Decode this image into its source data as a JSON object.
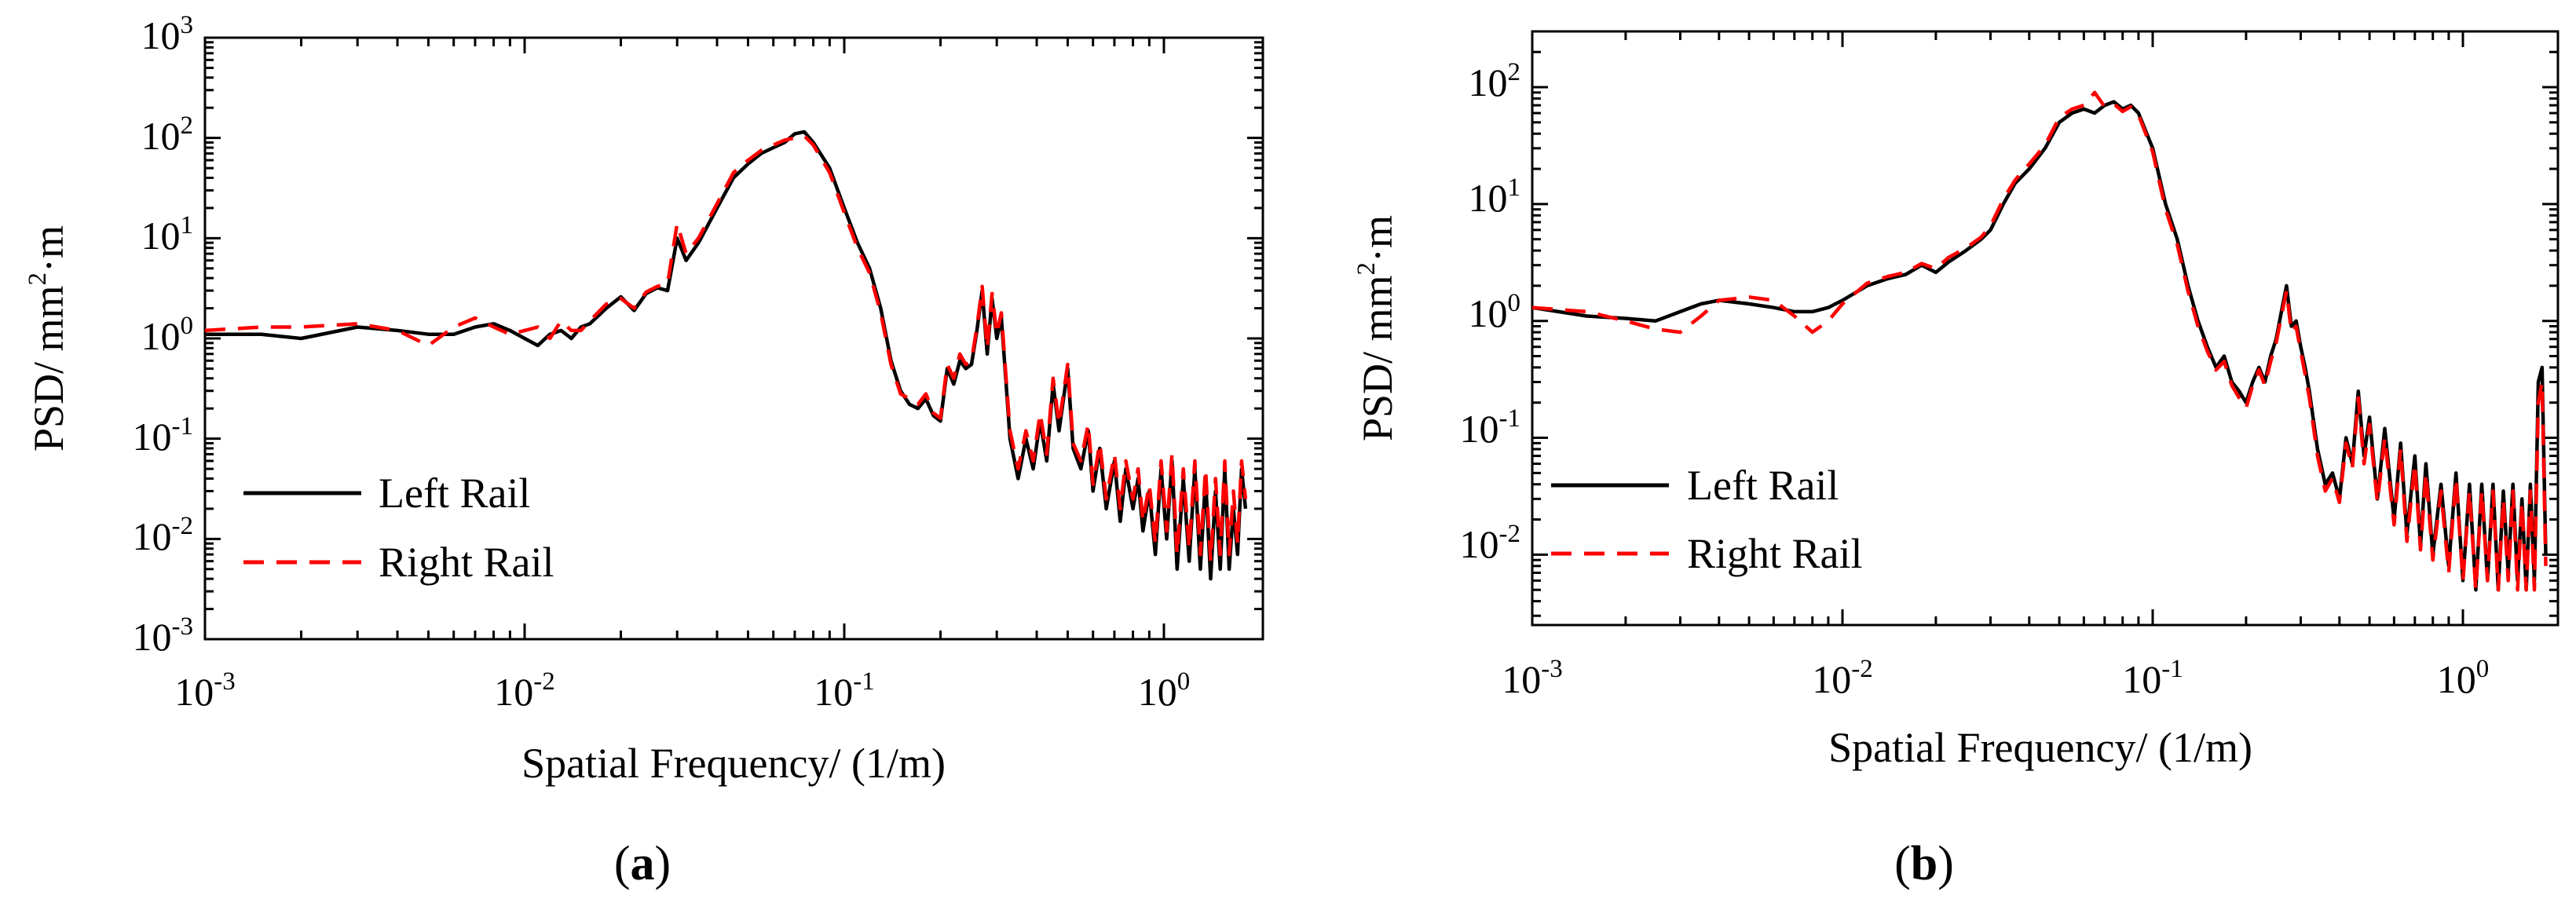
{
  "chart_data": [
    {
      "type": "line",
      "panel": "a",
      "panel_label": "a",
      "xlabel": "Spatial Frequency/ (1/m)",
      "ylabel": "PSD/ mm",
      "ylabel_sup": "2",
      "ylabel_tail": "·m",
      "x_scale": "log",
      "y_scale": "log",
      "xlim": [
        0.001,
        1.9
      ],
      "ylim": [
        0.001,
        1000
      ],
      "x_ticks": [
        {
          "base": "10",
          "exp": "-3"
        },
        {
          "base": "10",
          "exp": "-2"
        },
        {
          "base": "10",
          "exp": "-1"
        },
        {
          "base": "10",
          "exp": "0"
        }
      ],
      "y_ticks": [
        {
          "base": "10",
          "exp": "-3"
        },
        {
          "base": "10",
          "exp": "-2"
        },
        {
          "base": "10",
          "exp": "-1"
        },
        {
          "base": "10",
          "exp": "0"
        },
        {
          "base": "10",
          "exp": "1"
        },
        {
          "base": "10",
          "exp": "2"
        },
        {
          "base": "10",
          "exp": "3"
        }
      ],
      "legend_position": "bottom-left",
      "series": [
        {
          "name": "Left Rail",
          "color": "#000000",
          "dash": "solid",
          "x": [
            0.001,
            0.0015,
            0.002,
            0.003,
            0.004,
            0.005,
            0.006,
            0.007,
            0.008,
            0.009,
            0.01,
            0.011,
            0.012,
            0.013,
            0.014,
            0.015,
            0.016,
            0.018,
            0.02,
            0.022,
            0.024,
            0.026,
            0.028,
            0.03,
            0.032,
            0.035,
            0.04,
            0.045,
            0.05,
            0.055,
            0.06,
            0.065,
            0.07,
            0.075,
            0.08,
            0.09,
            0.1,
            0.11,
            0.12,
            0.13,
            0.14,
            0.15,
            0.16,
            0.17,
            0.18,
            0.19,
            0.2,
            0.21,
            0.22,
            0.23,
            0.24,
            0.25,
            0.26,
            0.27,
            0.28,
            0.29,
            0.3,
            0.31,
            0.32,
            0.33,
            0.35,
            0.37,
            0.39,
            0.41,
            0.43,
            0.45,
            0.47,
            0.5,
            0.52,
            0.55,
            0.58,
            0.6,
            0.63,
            0.66,
            0.7,
            0.73,
            0.76,
            0.8,
            0.83,
            0.86,
            0.9,
            0.94,
            0.98,
            1.02,
            1.06,
            1.1,
            1.15,
            1.2,
            1.25,
            1.3,
            1.35,
            1.4,
            1.45,
            1.5,
            1.55,
            1.6,
            1.65,
            1.7,
            1.75,
            1.8
          ],
          "y": [
            1.1,
            1.1,
            1.0,
            1.3,
            1.2,
            1.1,
            1.1,
            1.3,
            1.4,
            1.2,
            1.0,
            0.85,
            1.1,
            1.2,
            1.0,
            1.3,
            1.4,
            2.0,
            2.6,
            1.9,
            2.8,
            3.2,
            3.0,
            10,
            6,
            9,
            20,
            40,
            55,
            70,
            80,
            90,
            110,
            115,
            90,
            50,
            20,
            9,
            5,
            2,
            0.6,
            0.3,
            0.22,
            0.2,
            0.25,
            0.17,
            0.15,
            0.5,
            0.35,
            0.6,
            0.5,
            0.55,
            1.2,
            3.0,
            0.7,
            2.5,
            1.0,
            1.6,
            0.4,
            0.1,
            0.04,
            0.1,
            0.05,
            0.15,
            0.06,
            0.35,
            0.12,
            0.5,
            0.08,
            0.05,
            0.12,
            0.03,
            0.08,
            0.02,
            0.06,
            0.015,
            0.05,
            0.02,
            0.04,
            0.012,
            0.03,
            0.007,
            0.05,
            0.01,
            0.06,
            0.005,
            0.04,
            0.006,
            0.05,
            0.005,
            0.04,
            0.004,
            0.03,
            0.005,
            0.05,
            0.005,
            0.02,
            0.007,
            0.05,
            0.02
          ]
        },
        {
          "name": "Right Rail",
          "color": "#ff0000",
          "dash": "dashed",
          "x": [
            0.001,
            0.0015,
            0.002,
            0.003,
            0.004,
            0.005,
            0.006,
            0.007,
            0.008,
            0.009,
            0.01,
            0.011,
            0.012,
            0.013,
            0.014,
            0.015,
            0.016,
            0.018,
            0.02,
            0.022,
            0.024,
            0.026,
            0.028,
            0.03,
            0.032,
            0.035,
            0.04,
            0.045,
            0.05,
            0.055,
            0.06,
            0.065,
            0.07,
            0.075,
            0.08,
            0.09,
            0.1,
            0.11,
            0.12,
            0.13,
            0.14,
            0.15,
            0.16,
            0.17,
            0.18,
            0.19,
            0.2,
            0.21,
            0.22,
            0.23,
            0.24,
            0.25,
            0.26,
            0.27,
            0.28,
            0.29,
            0.3,
            0.31,
            0.32,
            0.33,
            0.35,
            0.37,
            0.39,
            0.41,
            0.43,
            0.45,
            0.47,
            0.5,
            0.52,
            0.55,
            0.58,
            0.6,
            0.63,
            0.66,
            0.7,
            0.73,
            0.76,
            0.8,
            0.83,
            0.86,
            0.9,
            0.94,
            0.98,
            1.02,
            1.06,
            1.1,
            1.15,
            1.2,
            1.25,
            1.3,
            1.35,
            1.4,
            1.45,
            1.5,
            1.55,
            1.6,
            1.65,
            1.7,
            1.75,
            1.8
          ],
          "y": [
            1.2,
            1.3,
            1.3,
            1.4,
            1.2,
            0.85,
            1.3,
            1.6,
            1.3,
            1.1,
            1.2,
            1.3,
            1.0,
            1.5,
            1.2,
            1.2,
            1.5,
            2.2,
            2.5,
            2.0,
            2.9,
            3.3,
            3.5,
            14,
            7,
            10,
            22,
            45,
            60,
            75,
            85,
            95,
            100,
            105,
            85,
            45,
            18,
            8,
            4.5,
            1.8,
            0.55,
            0.28,
            0.25,
            0.22,
            0.28,
            0.18,
            0.16,
            0.55,
            0.4,
            0.7,
            0.55,
            0.6,
            1.3,
            3.3,
            0.8,
            2.8,
            1.1,
            1.8,
            0.45,
            0.12,
            0.05,
            0.12,
            0.06,
            0.18,
            0.07,
            0.4,
            0.14,
            0.55,
            0.09,
            0.06,
            0.14,
            0.035,
            0.09,
            0.025,
            0.07,
            0.02,
            0.06,
            0.025,
            0.05,
            0.015,
            0.035,
            0.009,
            0.06,
            0.012,
            0.07,
            0.007,
            0.05,
            0.008,
            0.06,
            0.007,
            0.05,
            0.006,
            0.04,
            0.007,
            0.06,
            0.007,
            0.03,
            0.009,
            0.06,
            0.025
          ]
        }
      ]
    },
    {
      "type": "line",
      "panel": "b",
      "panel_label": "b",
      "xlabel": "Spatial Frequency/ (1/m)",
      "ylabel": "PSD/ mm",
      "ylabel_sup": "2",
      "ylabel_tail": "·m",
      "x_scale": "log",
      "y_scale": "log",
      "xlim": [
        0.001,
        1.9
      ],
      "ylim": [
        0.0025,
        300
      ],
      "x_ticks": [
        {
          "base": "10",
          "exp": "-3"
        },
        {
          "base": "10",
          "exp": "-2"
        },
        {
          "base": "10",
          "exp": "-1"
        },
        {
          "base": "10",
          "exp": "0"
        }
      ],
      "y_ticks": [
        {
          "base": "10",
          "exp": "-2"
        },
        {
          "base": "10",
          "exp": "-1"
        },
        {
          "base": "10",
          "exp": "0"
        },
        {
          "base": "10",
          "exp": "1"
        },
        {
          "base": "10",
          "exp": "2"
        }
      ],
      "legend_position": "bottom-left",
      "series": [
        {
          "name": "Left Rail",
          "color": "#000000",
          "dash": "solid",
          "x": [
            0.001,
            0.0015,
            0.002,
            0.0025,
            0.003,
            0.0035,
            0.004,
            0.005,
            0.006,
            0.007,
            0.008,
            0.009,
            0.01,
            0.012,
            0.014,
            0.016,
            0.018,
            0.02,
            0.022,
            0.025,
            0.028,
            0.03,
            0.033,
            0.036,
            0.04,
            0.045,
            0.05,
            0.055,
            0.06,
            0.065,
            0.07,
            0.075,
            0.08,
            0.085,
            0.09,
            0.1,
            0.11,
            0.12,
            0.13,
            0.14,
            0.15,
            0.16,
            0.17,
            0.18,
            0.19,
            0.2,
            0.21,
            0.22,
            0.23,
            0.24,
            0.25,
            0.26,
            0.27,
            0.28,
            0.29,
            0.3,
            0.31,
            0.32,
            0.34,
            0.36,
            0.38,
            0.4,
            0.42,
            0.44,
            0.46,
            0.48,
            0.5,
            0.53,
            0.56,
            0.6,
            0.63,
            0.66,
            0.7,
            0.73,
            0.76,
            0.8,
            0.85,
            0.9,
            0.95,
            1.0,
            1.05,
            1.1,
            1.15,
            1.2,
            1.25,
            1.3,
            1.35,
            1.4,
            1.45,
            1.5,
            1.55,
            1.6,
            1.65,
            1.7,
            1.75,
            1.8,
            1.85
          ],
          "y": [
            1.3,
            1.1,
            1.05,
            1.0,
            1.2,
            1.4,
            1.5,
            1.4,
            1.3,
            1.2,
            1.2,
            1.3,
            1.5,
            2.0,
            2.3,
            2.5,
            3.0,
            2.6,
            3.2,
            4.0,
            5.0,
            6.0,
            10,
            15,
            20,
            30,
            50,
            60,
            65,
            60,
            70,
            75,
            65,
            70,
            60,
            30,
            10,
            5,
            2,
            1.0,
            0.6,
            0.4,
            0.5,
            0.3,
            0.25,
            0.2,
            0.3,
            0.4,
            0.3,
            0.5,
            0.7,
            1.2,
            2.0,
            0.9,
            1.0,
            0.6,
            0.4,
            0.25,
            0.08,
            0.04,
            0.05,
            0.03,
            0.1,
            0.06,
            0.25,
            0.07,
            0.15,
            0.03,
            0.12,
            0.02,
            0.09,
            0.015,
            0.07,
            0.012,
            0.06,
            0.01,
            0.04,
            0.008,
            0.05,
            0.006,
            0.04,
            0.005,
            0.04,
            0.006,
            0.04,
            0.005,
            0.035,
            0.007,
            0.04,
            0.006,
            0.03,
            0.005,
            0.04,
            0.006,
            0.3,
            0.4,
            0.01
          ]
        },
        {
          "name": "Right Rail",
          "color": "#ff0000",
          "dash": "dashed",
          "x": [
            0.001,
            0.0015,
            0.002,
            0.0025,
            0.003,
            0.0035,
            0.004,
            0.005,
            0.006,
            0.007,
            0.008,
            0.009,
            0.01,
            0.012,
            0.014,
            0.016,
            0.018,
            0.02,
            0.022,
            0.025,
            0.028,
            0.03,
            0.033,
            0.036,
            0.04,
            0.045,
            0.05,
            0.055,
            0.06,
            0.065,
            0.07,
            0.075,
            0.08,
            0.085,
            0.09,
            0.1,
            0.11,
            0.12,
            0.13,
            0.14,
            0.15,
            0.16,
            0.17,
            0.18,
            0.19,
            0.2,
            0.21,
            0.22,
            0.23,
            0.24,
            0.25,
            0.26,
            0.27,
            0.28,
            0.29,
            0.3,
            0.31,
            0.32,
            0.34,
            0.36,
            0.38,
            0.4,
            0.42,
            0.44,
            0.46,
            0.48,
            0.5,
            0.53,
            0.56,
            0.6,
            0.63,
            0.66,
            0.7,
            0.73,
            0.76,
            0.8,
            0.85,
            0.9,
            0.95,
            1.0,
            1.05,
            1.1,
            1.15,
            1.2,
            1.25,
            1.3,
            1.35,
            1.4,
            1.45,
            1.5,
            1.55,
            1.6,
            1.65,
            1.7,
            1.75,
            1.8,
            1.85
          ],
          "y": [
            1.3,
            1.2,
            1.0,
            0.85,
            0.8,
            1.1,
            1.5,
            1.6,
            1.5,
            1.1,
            0.8,
            1.0,
            1.4,
            2.1,
            2.4,
            2.6,
            3.1,
            2.8,
            3.5,
            4.2,
            5.2,
            6.5,
            11,
            16,
            22,
            32,
            55,
            65,
            70,
            90,
            68,
            72,
            62,
            68,
            58,
            28,
            9,
            4.5,
            1.8,
            0.9,
            0.55,
            0.38,
            0.45,
            0.28,
            0.22,
            0.18,
            0.28,
            0.38,
            0.28,
            0.45,
            0.65,
            1.1,
            1.8,
            0.8,
            0.9,
            0.55,
            0.35,
            0.22,
            0.07,
            0.035,
            0.045,
            0.028,
            0.09,
            0.055,
            0.22,
            0.06,
            0.13,
            0.028,
            0.1,
            0.018,
            0.08,
            0.013,
            0.06,
            0.011,
            0.05,
            0.009,
            0.035,
            0.007,
            0.045,
            0.006,
            0.035,
            0.005,
            0.035,
            0.006,
            0.035,
            0.005,
            0.03,
            0.006,
            0.035,
            0.005,
            0.028,
            0.005,
            0.035,
            0.005,
            0.2,
            0.3,
            0.008
          ]
        }
      ]
    }
  ]
}
